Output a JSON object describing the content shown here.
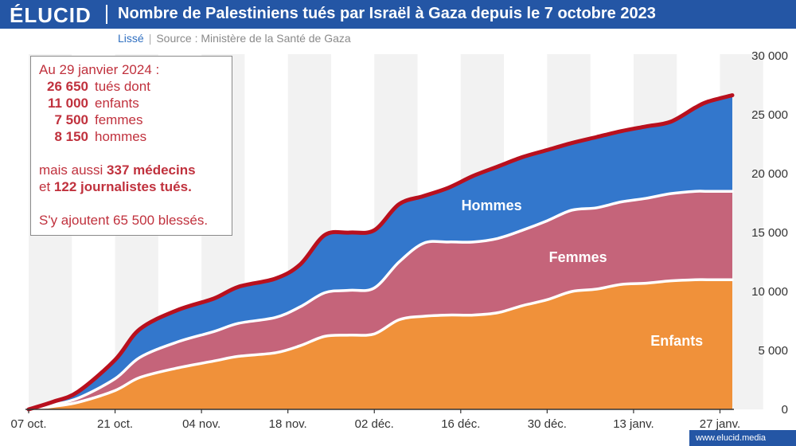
{
  "brand": {
    "logo": "ÉLUCID",
    "footer": "www.elucid.media"
  },
  "header": {
    "title": "Nombre de Palestiniens tués par Israël à Gaza depuis le 7 octobre 2023"
  },
  "subline": {
    "mode": "Lissé",
    "source": "Source : Ministère de la Santé de Gaza"
  },
  "infobox": {
    "heading": "Au 29 janvier 2024 :",
    "lines": [
      {
        "num": "26 650",
        "label": "tués dont"
      },
      {
        "num": "11 000",
        "label": "enfants"
      },
      {
        "num": "7 500",
        "label": "femmes"
      },
      {
        "num": "8 150",
        "label": "hommes"
      }
    ],
    "extra1_pre": "mais aussi ",
    "extra1_bold": "337 médecins",
    "extra2_pre": "et ",
    "extra2_bold": "122 journalistes tués.",
    "extra3": "S'y ajoutent 65 500 blessés."
  },
  "colors": {
    "enfants": "#f0913a",
    "femmes": "#c5647a",
    "hommes": "#3377cc",
    "total_line": "#b8101e",
    "band_shade": "#f2f2f2"
  },
  "chart_data": {
    "type": "area",
    "stacked": true,
    "title": "Nombre de Palestiniens tués par Israël à Gaza depuis le 7 octobre 2023",
    "x_unit": "days since 07 oct. 2023",
    "xlim": [
      0,
      114
    ],
    "ylim": [
      0,
      30000
    ],
    "y_ticks": [
      0,
      5000,
      10000,
      15000,
      20000,
      25000,
      30000
    ],
    "y_tick_labels": [
      "0",
      "5 000",
      "10 000",
      "15 000",
      "20 000",
      "25 000",
      "30 000"
    ],
    "x_ticks": [
      0,
      14,
      28,
      42,
      56,
      70,
      84,
      98,
      112
    ],
    "x_tick_labels": [
      "07 oct.",
      "21 oct.",
      "04 nov.",
      "18 nov.",
      "02 déc.",
      "16 déc.",
      "30 déc.",
      "13 janv.",
      "27 janv."
    ],
    "series_labels": [
      {
        "name": "Enfants",
        "x": 105,
        "y": 5400
      },
      {
        "name": "Femmes",
        "x": 89,
        "y": 12500
      },
      {
        "name": "Hommes",
        "x": 75,
        "y": 16900
      }
    ],
    "x": [
      0,
      4,
      8,
      14,
      18,
      24,
      30,
      34,
      40,
      44,
      48,
      52,
      56,
      60,
      64,
      68,
      72,
      76,
      80,
      84,
      88,
      92,
      96,
      100,
      104,
      108,
      110,
      114
    ],
    "series": [
      {
        "name": "Enfants",
        "values": [
          0,
          250,
          600,
          1600,
          2700,
          3500,
          4100,
          4500,
          4800,
          5400,
          6200,
          6300,
          6400,
          7600,
          7900,
          8000,
          8000,
          8200,
          8800,
          9300,
          10000,
          10200,
          10600,
          10700,
          10900,
          11000,
          11000,
          11000
        ]
      },
      {
        "name": "Femmes",
        "values": [
          0,
          150,
          350,
          1000,
          1700,
          2200,
          2500,
          2800,
          3000,
          3300,
          3700,
          3800,
          3900,
          4900,
          6200,
          6200,
          6200,
          6300,
          6400,
          6700,
          6900,
          6900,
          7000,
          7200,
          7400,
          7500,
          7500,
          7500
        ]
      },
      {
        "name": "Hommes",
        "values": [
          0,
          250,
          550,
          1600,
          2400,
          2700,
          2800,
          3100,
          3300,
          3600,
          4900,
          4900,
          4900,
          4900,
          4000,
          4600,
          5600,
          6100,
          6200,
          6000,
          5700,
          6000,
          6000,
          6100,
          6100,
          7100,
          7600,
          8150
        ]
      }
    ]
  }
}
